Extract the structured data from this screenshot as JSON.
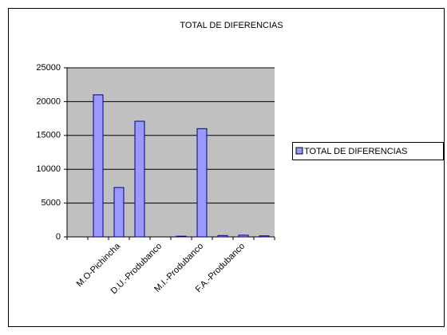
{
  "chart_data": {
    "type": "bar",
    "title": "TOTAL DE DIFERENCIAS",
    "categories": [
      null,
      null,
      "M.O-Pichincha",
      null,
      "D.U.-Produbanco",
      null,
      "M.I.-Produbanco",
      null,
      "F.A.-Produbanco",
      null
    ],
    "series": [
      {
        "name": "TOTAL DE DIFERENCIAS",
        "color": "#9999ff",
        "values": [
          0,
          21000,
          7300,
          17100,
          0,
          100,
          16000,
          200,
          250,
          150
        ]
      }
    ],
    "ylim": [
      0,
      25000
    ],
    "yticks": [
      0,
      5000,
      10000,
      15000,
      20000,
      25000
    ],
    "grid": true,
    "legend": "right"
  }
}
